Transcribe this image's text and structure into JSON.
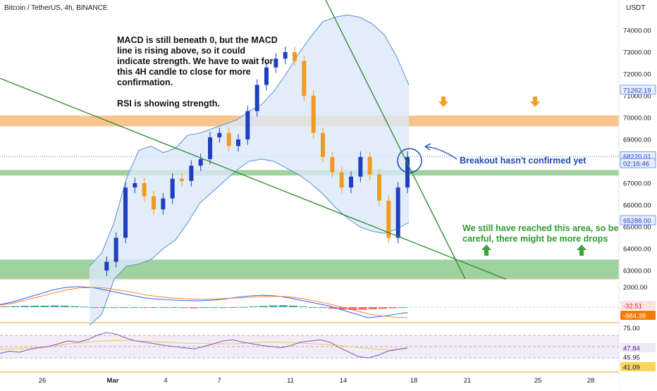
{
  "title": "Bitcoin / TetherUS, 4h, BINANCE",
  "currency": "USDT",
  "colors": {
    "up": "#1e3fbf",
    "down": "#f19a20",
    "band_fill": "#dbe9f8",
    "band_line": "#5a8fd6",
    "trendline": "#2a8a2a",
    "resistance_zone": "#f7b26a",
    "support_zone": "#76bf76",
    "annotation_blue": "#1e48b4",
    "annotation_green": "#2f9a2f",
    "macd_line": "#2962ff",
    "signal_line": "#ff7a2a",
    "rsi_line": "#7e57c2",
    "rsi_ma": "#f2c94c"
  },
  "annotations": {
    "macd_note": "MACD is still beneath 0, but the MACD line is rising above, so it could indicate strength. We have to wait for this 4H candle to close for more confirmation.",
    "rsi_note": "RSI is showing strength.",
    "breakout_note": "Breakout hasn't confirmed yet",
    "area_note": "We still have reached this area, so be careful, there might be more drops"
  },
  "chart_data": [
    {
      "type": "candlestick",
      "name": "price",
      "x_labels": [
        "26",
        "Mar",
        "4",
        "7",
        "11",
        "14",
        "18",
        "21",
        "25",
        "28"
      ],
      "y_ticks": [
        63000,
        64000,
        65000,
        66000,
        67000,
        68000,
        69000,
        70000,
        71000,
        72000,
        73000,
        74000
      ],
      "ylim": [
        62600,
        75000
      ],
      "price_labels": [
        {
          "text": "71262.19",
          "value": 71262.19
        },
        {
          "text": "68220.01",
          "value": 68220.01
        },
        {
          "text": "02:16:46",
          "value": 67900
        },
        {
          "text": "65288.00",
          "value": 65288
        }
      ],
      "resistance_zone": [
        69700,
        70000
      ],
      "support_zones": [
        [
          67350,
          67600
        ],
        [
          62600,
          63500
        ]
      ],
      "close_series": [
        63000,
        63400,
        64500,
        66800,
        67000,
        66400,
        65800,
        66300,
        67200,
        67100,
        67800,
        68100,
        69100,
        69300,
        68700,
        69000,
        70300,
        71500,
        72300,
        72700,
        73000,
        72600,
        71000,
        69300,
        68200,
        67500,
        66800,
        67300,
        68200,
        67400,
        66200,
        64500,
        66800,
        68200
      ],
      "upper_band_series": [
        63200,
        63800,
        65200,
        67200,
        68500,
        68700,
        68400,
        68600,
        69200,
        69300,
        69500,
        69700,
        69900,
        70300,
        70600,
        71200,
        72000,
        72900,
        73700,
        74400,
        74600,
        74700,
        74600,
        74300,
        73800,
        72800,
        71500
      ],
      "lower_band_series": [
        60500,
        61000,
        62600,
        63200,
        63300,
        63500,
        64000,
        64400,
        65200,
        66100,
        66600,
        67100,
        67600,
        68000,
        68100,
        68000,
        67700,
        67400,
        67000,
        66500,
        65900,
        65400,
        65000,
        64800,
        64700,
        64900,
        65200
      ]
    },
    {
      "type": "bar",
      "name": "MACD",
      "y_ticks": [
        2000
      ],
      "labels": [
        "-32.51",
        "-884.38"
      ],
      "histogram": [
        60,
        80,
        100,
        120,
        120,
        140,
        120,
        80,
        40,
        0,
        -40,
        -60,
        -60,
        -40,
        -20,
        0,
        -20,
        -40,
        -60,
        -80,
        -60,
        -40,
        -20,
        0,
        20,
        60,
        100,
        140,
        160,
        120,
        60,
        0,
        -60,
        -120,
        -180,
        -220,
        -200,
        -160,
        -120,
        -80,
        -40
      ],
      "macd_series": [
        200,
        400,
        700,
        1000,
        1300,
        1500,
        1550,
        1500,
        1300,
        1100,
        900,
        700,
        600,
        550,
        500,
        480,
        520,
        600,
        750,
        850,
        900,
        850,
        700,
        500,
        300,
        100,
        -200,
        -500,
        -800,
        -700,
        -550,
        -400
      ],
      "signal_series": [
        150,
        300,
        550,
        800,
        1050,
        1300,
        1450,
        1500,
        1450,
        1300,
        1150,
        950,
        800,
        700,
        650,
        600,
        600,
        650,
        700,
        750,
        800,
        820,
        780,
        650,
        450,
        250,
        0,
        -250,
        -500,
        -650,
        -750,
        -800
      ]
    },
    {
      "type": "line",
      "name": "RSI",
      "y_ticks": [
        75
      ],
      "levels": [
        70,
        50,
        30
      ],
      "labels": [
        "47.84",
        "45.95",
        "41.09"
      ],
      "rsi_series": [
        38,
        42,
        40,
        45,
        48,
        50,
        55,
        60,
        58,
        62,
        70,
        75,
        72,
        65,
        60,
        58,
        55,
        52,
        50,
        48,
        46,
        50,
        55,
        60,
        62,
        58,
        55,
        52,
        50,
        48,
        52,
        58,
        60,
        62,
        58,
        48,
        40,
        32,
        30,
        35,
        42,
        45,
        48
      ],
      "rsi_ma_series": [
        45,
        46,
        47,
        48,
        50,
        52,
        55,
        57,
        59,
        60,
        61,
        61,
        60,
        59,
        58,
        57,
        56,
        56,
        55,
        55,
        55,
        56,
        57,
        58,
        58,
        57,
        56,
        55,
        54,
        52,
        50,
        48,
        46,
        45,
        45,
        46
      ]
    }
  ]
}
